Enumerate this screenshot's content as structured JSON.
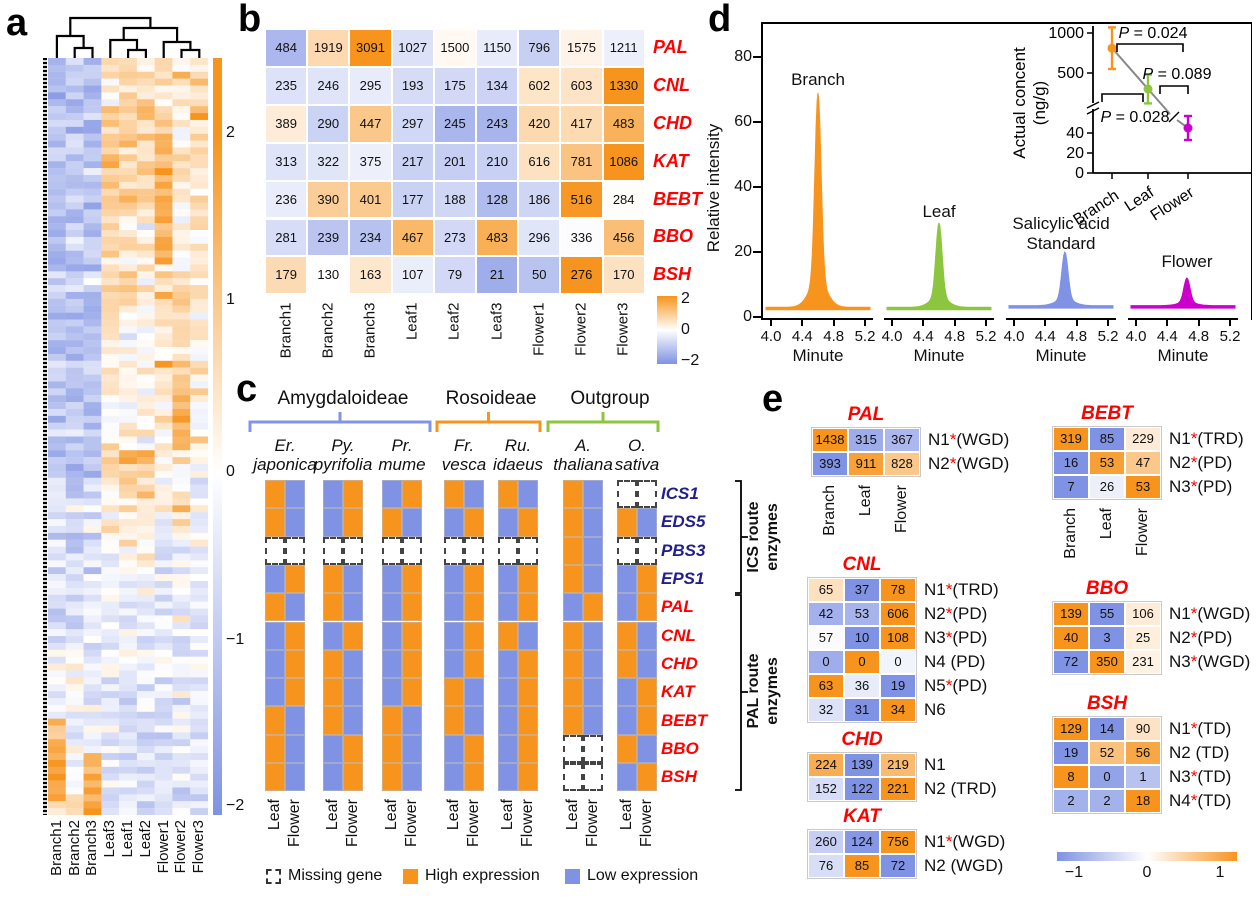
{
  "colors": {
    "high_orange": "#F7941E",
    "low_blue": "#7F92E3",
    "leaf_green": "#8CC63F",
    "flower_magenta": "#CC00CC",
    "standard_blue": "#7F92E3",
    "branch_orange": "#F7941E",
    "gene_red": "#FF0000",
    "ics_navy": "#221F8C",
    "bracket_blue": "#8095E5",
    "bracket_orange": "#F7941E",
    "bracket_green": "#8CC63F",
    "trend_gray": "#888888"
  },
  "panel_a": {
    "label": "a",
    "samples": [
      "Branch1",
      "Branch2",
      "Branch3",
      "Leaf3",
      "Leaf1",
      "Leaf2",
      "Flower1",
      "Flower2",
      "Flower3"
    ],
    "colorbar_ticks": [
      "2",
      "1",
      "0",
      "−1",
      "−2"
    ],
    "chart_data": {
      "type": "heatmap",
      "description": "Hierarchically clustered z-score expression heatmap over 9 samples; Branch samples cluster separately from Leaf and Flower samples.",
      "dendrogram": "((Branch1,(Branch2,Branch3)),((Leaf3,(Leaf1,Leaf2)),(Flower1,(Flower2,Flower3))))",
      "scale_range": [
        -2,
        2
      ],
      "column_profiles": [
        [
          [
            0.08,
            -1.3
          ],
          [
            0.55,
            -1.05
          ],
          [
            0.62,
            -0.3
          ],
          [
            0.75,
            -0.65
          ],
          [
            0.87,
            -0.35
          ],
          [
            0.9,
            0.9
          ],
          [
            0.98,
            1.7
          ],
          [
            1,
            0.6
          ]
        ],
        [
          [
            0.55,
            -1.0
          ],
          [
            0.65,
            -0.75
          ],
          [
            0.8,
            -0.55
          ],
          [
            0.97,
            -0.25
          ],
          [
            1,
            0.9
          ]
        ],
        [
          [
            0.55,
            -1.1
          ],
          [
            0.7,
            -0.7
          ],
          [
            0.85,
            -0.4
          ],
          [
            0.92,
            -0.1
          ],
          [
            1,
            1.7
          ]
        ],
        [
          [
            0.06,
            0.3
          ],
          [
            0.2,
            1.05
          ],
          [
            0.36,
            0.65
          ],
          [
            0.5,
            0.2
          ],
          [
            0.56,
            0.7
          ],
          [
            0.63,
            0.15
          ],
          [
            0.75,
            -0.15
          ],
          [
            1,
            -0.45
          ]
        ],
        [
          [
            0.05,
            0.6
          ],
          [
            0.2,
            0.85
          ],
          [
            0.35,
            0.5
          ],
          [
            0.52,
            0.1
          ],
          [
            0.58,
            1.2
          ],
          [
            0.68,
            0.3
          ],
          [
            0.8,
            -0.3
          ],
          [
            1,
            -0.5
          ]
        ],
        [
          [
            0.05,
            0.5
          ],
          [
            0.2,
            0.75
          ],
          [
            0.35,
            0.45
          ],
          [
            0.52,
            0.05
          ],
          [
            0.58,
            0.9
          ],
          [
            0.68,
            0.2
          ],
          [
            0.8,
            -0.3
          ],
          [
            1,
            -0.5
          ]
        ],
        [
          [
            0.08,
            0.5
          ],
          [
            0.13,
            1.2
          ],
          [
            0.27,
            1.6
          ],
          [
            0.45,
            0.55
          ],
          [
            0.6,
            0.05
          ],
          [
            0.8,
            -0.4
          ],
          [
            1,
            -0.6
          ]
        ],
        [
          [
            0.1,
            0.35
          ],
          [
            0.3,
            0.25
          ],
          [
            0.42,
            0.7
          ],
          [
            0.52,
            1.5
          ],
          [
            0.62,
            0.35
          ],
          [
            0.75,
            -0.2
          ],
          [
            1,
            -0.5
          ]
        ],
        [
          [
            0.1,
            0.7
          ],
          [
            0.3,
            0.5
          ],
          [
            0.45,
            0.35
          ],
          [
            0.55,
            0.1
          ],
          [
            0.68,
            -0.1
          ],
          [
            0.85,
            -0.4
          ],
          [
            1,
            -0.55
          ]
        ]
      ]
    }
  },
  "panel_b": {
    "label": "b",
    "chart_data": {
      "type": "heatmap",
      "rows": [
        "PAL",
        "CNL",
        "CHD",
        "KAT",
        "BEBT",
        "BBO",
        "BSH"
      ],
      "columns": [
        "Branch1",
        "Branch2",
        "Branch3",
        "Leaf1",
        "Leaf2",
        "Leaf3",
        "Flower1",
        "Flower2",
        "Flower3"
      ],
      "values": [
        [
          484,
          1919,
          3091,
          1027,
          1500,
          1150,
          796,
          1575,
          1211
        ],
        [
          235,
          246,
          295,
          193,
          175,
          134,
          602,
          603,
          1330
        ],
        [
          389,
          290,
          447,
          297,
          245,
          243,
          420,
          417,
          483
        ],
        [
          313,
          322,
          375,
          217,
          201,
          210,
          616,
          781,
          1086
        ],
        [
          236,
          390,
          401,
          177,
          188,
          128,
          186,
          516,
          284
        ],
        [
          281,
          239,
          234,
          467,
          273,
          483,
          296,
          336,
          456
        ],
        [
          179,
          130,
          163,
          107,
          79,
          21,
          50,
          276,
          170
        ]
      ],
      "normalization": "row z-score",
      "scale_ticks": [
        "2",
        "0",
        "−2"
      ],
      "scale_range": [
        -2,
        2
      ]
    }
  },
  "panel_c": {
    "label": "c",
    "groups": [
      {
        "name": "Amygdaloideae",
        "color_key": "bracket_blue",
        "species_count": 3
      },
      {
        "name": "Rosoideae",
        "color_key": "bracket_orange",
        "species_count": 2
      },
      {
        "name": "Outgroup",
        "color_key": "bracket_green",
        "species_count": 2
      }
    ],
    "species": [
      {
        "genus": "Er.",
        "epithet": "japonica"
      },
      {
        "genus": "Py.",
        "epithet": "pyrifolia"
      },
      {
        "genus": "Pr.",
        "epithet": "mume"
      },
      {
        "genus": "Fr.",
        "epithet": "vesca"
      },
      {
        "genus": "Ru.",
        "epithet": "idaeus"
      },
      {
        "genus": "A.",
        "epithet": "thaliana"
      },
      {
        "genus": "O.",
        "epithet": "sativa"
      }
    ],
    "ics_genes": [
      "ICS1",
      "EDS5",
      "PBS3",
      "EPS1"
    ],
    "pal_genes": [
      "PAL",
      "CNL",
      "CHD",
      "KAT",
      "BEBT",
      "BBO",
      "BSH"
    ],
    "route_labels": [
      [
        "ICS route",
        "enzymes"
      ],
      [
        "PAL route",
        "enzymes"
      ]
    ],
    "tissues": [
      "Leaf",
      "Flower"
    ],
    "chart_data": {
      "type": "heatmap",
      "encoding": "per species pair [Leaf,Flower]; H=high expression, L=low expression, M=missing gene",
      "species_order": [
        "Er. japonica",
        "Py. pyrifolia",
        "Pr. mume",
        "Fr. vesca",
        "Ru. idaeus",
        "A. thaliana",
        "O. sativa"
      ],
      "matrix_by_gene": {
        "ICS1": [
          "HL",
          "LH",
          "LH",
          "HL",
          "HL",
          "HL",
          "MM"
        ],
        "EDS5": [
          "HL",
          "LH",
          "HL",
          "LH",
          "LH",
          "HL",
          "HL"
        ],
        "PBS3": [
          "MM",
          "MM",
          "MM",
          "MM",
          "MM",
          "HL",
          "MM"
        ],
        "EPS1": [
          "LH",
          "HL",
          "LH",
          "LH",
          "LH",
          "HL",
          "LH"
        ],
        "PAL": [
          "HL",
          "HL",
          "LH",
          "LH",
          "LH",
          "LH",
          "LH"
        ],
        "CNL": [
          "LH",
          "LH",
          "LH",
          "LH",
          "HL",
          "HL",
          "HL"
        ],
        "CHD": [
          "LH",
          "HL",
          "LH",
          "LH",
          "LH",
          "HL",
          "HL"
        ],
        "KAT": [
          "LH",
          "HL",
          "LH",
          "HL",
          "LH",
          "HL",
          "LH"
        ],
        "BEBT": [
          "HL",
          "HL",
          "HL",
          "HL",
          "LH",
          "HL",
          "LH"
        ],
        "BBO": [
          "HL",
          "LH",
          "HL",
          "LH",
          "LH",
          "MM",
          "HL"
        ],
        "BSH": [
          "HL",
          "LH",
          "HL",
          "LH",
          "LH",
          "MM",
          "LH"
        ]
      }
    },
    "legend": [
      {
        "label": "Missing gene",
        "swatch": "missing"
      },
      {
        "label": "High expression",
        "swatch": "high"
      },
      {
        "label": "Low expression",
        "swatch": "low"
      }
    ]
  },
  "panel_d": {
    "label": "d",
    "ylabel": "Relative intensity",
    "yticks": [
      "80",
      "60",
      "40",
      "20",
      "0"
    ],
    "xlabel": "Minute",
    "xticks": [
      "4.0",
      "4.4",
      "4.8",
      "5.2"
    ],
    "chart_data": {
      "type": "area",
      "x_range_minutes": [
        4.0,
        5.2
      ],
      "ylim": [
        0,
        88
      ],
      "traces": [
        {
          "name": "Branch",
          "label_lines": [
            "Branch"
          ],
          "color_key": "branch_orange",
          "peak_minute": 4.6,
          "peak_intensity": 69,
          "baseline": 3
        },
        {
          "name": "Leaf",
          "label_lines": [
            "Leaf"
          ],
          "color_key": "leaf_green",
          "peak_minute": 4.6,
          "peak_intensity": 29,
          "baseline": 3
        },
        {
          "name": "Salicylic acid Standard",
          "label_lines": [
            "Salicylic acid",
            "Standard"
          ],
          "color_key": "standard_blue",
          "peak_minute": 4.65,
          "peak_intensity": 20,
          "baseline": 3.5
        },
        {
          "name": "Flower",
          "label_lines": [
            "Flower"
          ],
          "color_key": "flower_magenta",
          "peak_minute": 4.65,
          "peak_intensity": 12,
          "baseline": 3.5
        }
      ]
    },
    "inset": {
      "ylabel_lines": [
        "Actual concent",
        "(ng/g)"
      ],
      "yticks_upper": [
        "1000",
        "500"
      ],
      "yticks_lower": [
        "40",
        "20",
        "0"
      ],
      "xcats": [
        "Branch",
        "Leaf",
        "Flower"
      ],
      "chart_data": {
        "type": "scatter",
        "y_axis_break": true,
        "points": [
          {
            "name": "Branch",
            "conc_ng_g": 810,
            "err": 260,
            "color_key": "branch_orange"
          },
          {
            "name": "Leaf",
            "conc_ng_g": 300,
            "err": 180,
            "color_key": "leaf_green"
          },
          {
            "name": "Flower",
            "conc_ng_g": 45,
            "err": 12,
            "color_key": "flower_magenta"
          }
        ],
        "comparisons": [
          {
            "label": "P = 0.024",
            "between": [
              "Branch",
              "Flower"
            ]
          },
          {
            "label": "P = 0.089",
            "between": [
              "Leaf",
              "Flower"
            ]
          },
          {
            "label": "P = 0.028",
            "between": [
              "Branch",
              "Leaf"
            ]
          }
        ]
      }
    }
  },
  "panel_e": {
    "label": "e",
    "columns": [
      "Branch",
      "Leaf",
      "Flower"
    ],
    "scale_ticks": [
      "−1",
      "0",
      "1"
    ],
    "scale_range": [
      -1,
      1
    ],
    "chart_data": {
      "type": "heatmap",
      "normalization": "row z-score",
      "tables": [
        {
          "gene": "PAL",
          "show_column_labels": true,
          "rows": [
            {
              "name": "N1",
              "star": true,
              "mech": "(WGD)",
              "values": [
                1438,
                315,
                367
              ]
            },
            {
              "name": "N2",
              "star": true,
              "mech": "(WGD)",
              "values": [
                393,
                911,
                828
              ]
            }
          ]
        },
        {
          "gene": "CNL",
          "rows": [
            {
              "name": "N1",
              "star": true,
              "mech": "(TRD)",
              "values": [
                65,
                37,
                78
              ]
            },
            {
              "name": "N2",
              "star": true,
              "mech": "(PD)",
              "values": [
                42,
                53,
                606
              ]
            },
            {
              "name": "N3",
              "star": true,
              "mech": "(PD)",
              "values": [
                57,
                10,
                108
              ]
            },
            {
              "name": "N4",
              "star": false,
              "mech": "(PD)",
              "values": [
                0,
                0,
                0
              ],
              "z_override": [
                -0.75,
                1.2,
                -0.1
              ]
            },
            {
              "name": "N5",
              "star": true,
              "mech": "(PD)",
              "values": [
                63,
                36,
                19
              ]
            },
            {
              "name": "N6",
              "star": false,
              "mech": "",
              "values": [
                32,
                31,
                34
              ]
            }
          ]
        },
        {
          "gene": "CHD",
          "rows": [
            {
              "name": "N1",
              "star": false,
              "mech": "",
              "values": [
                224,
                139,
                219
              ]
            },
            {
              "name": "N2",
              "star": false,
              "mech": "(TRD)",
              "values": [
                152,
                122,
                221
              ]
            }
          ]
        },
        {
          "gene": "KAT",
          "rows": [
            {
              "name": "N1",
              "star": true,
              "mech": "(WGD)",
              "values": [
                260,
                124,
                756
              ]
            },
            {
              "name": "N2",
              "star": false,
              "mech": "(WGD)",
              "values": [
                76,
                85,
                72
              ]
            }
          ]
        },
        {
          "gene": "BEBT",
          "show_column_labels": true,
          "rows": [
            {
              "name": "N1",
              "star": true,
              "mech": "(TRD)",
              "values": [
                319,
                85,
                229
              ]
            },
            {
              "name": "N2",
              "star": true,
              "mech": "(PD)",
              "values": [
                16,
                53,
                47
              ]
            },
            {
              "name": "N3",
              "star": true,
              "mech": "(PD)",
              "values": [
                7,
                26,
                53
              ]
            }
          ]
        },
        {
          "gene": "BBO",
          "rows": [
            {
              "name": "N1",
              "star": true,
              "mech": "(WGD)",
              "values": [
                139,
                55,
                106
              ]
            },
            {
              "name": "N2",
              "star": true,
              "mech": "(PD)",
              "values": [
                40,
                3,
                25
              ]
            },
            {
              "name": "N3",
              "star": true,
              "mech": "(WGD)",
              "values": [
                72,
                350,
                231
              ]
            }
          ]
        },
        {
          "gene": "BSH",
          "rows": [
            {
              "name": "N1",
              "star": true,
              "mech": "(TD)",
              "values": [
                129,
                14,
                90
              ]
            },
            {
              "name": "N2",
              "star": false,
              "mech": "(TD)",
              "values": [
                19,
                52,
                56
              ]
            },
            {
              "name": "N3",
              "star": true,
              "mech": "(TD)",
              "values": [
                8,
                0,
                1
              ]
            },
            {
              "name": "N4",
              "star": true,
              "mech": "(TD)",
              "values": [
                2,
                2,
                18
              ]
            }
          ]
        }
      ]
    }
  }
}
